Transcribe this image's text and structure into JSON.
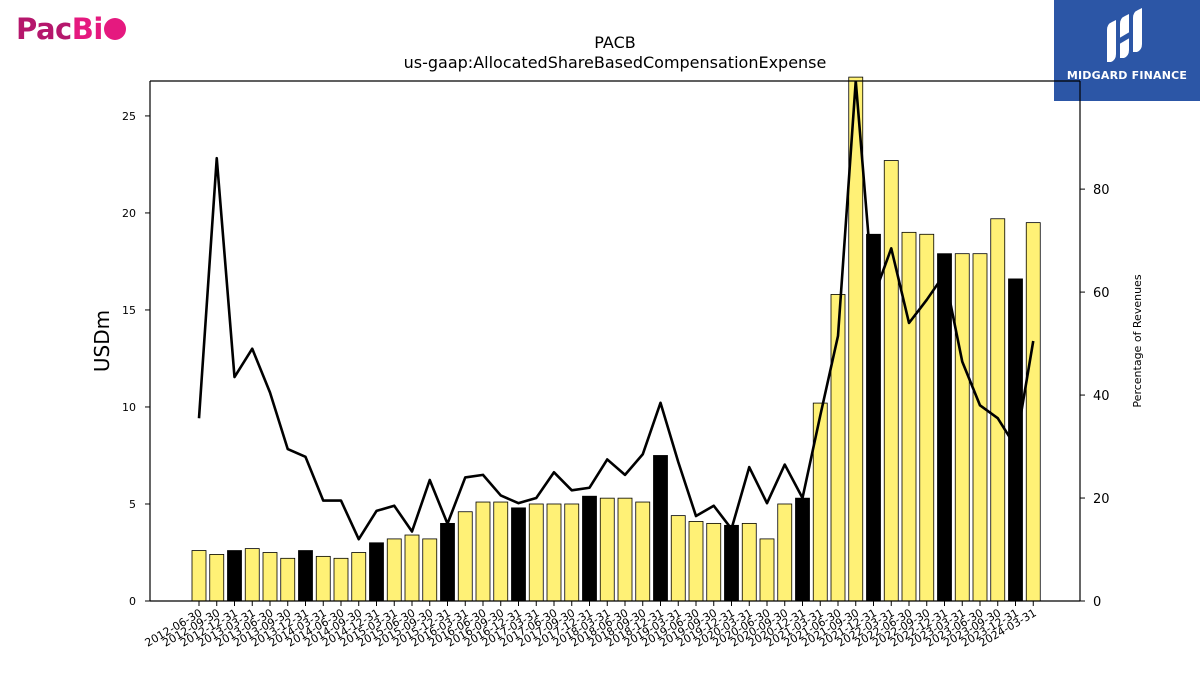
{
  "logos": {
    "left": {
      "text_a": "Pac",
      "text_b": "Bi"
    },
    "right": {
      "brand": "MIDGARD FINANCE"
    }
  },
  "chart_data": {
    "type": "bar",
    "title": "PACB",
    "subtitle": "us-gaap:AllocatedShareBasedCompensationExpense",
    "ylabel": "USDm",
    "y2label": "Percentage of Revenues",
    "ylim": [
      0,
      26.8
    ],
    "y2lim": [
      0,
      101
    ],
    "yticks": [
      0,
      5,
      10,
      15,
      20,
      25
    ],
    "y2ticks": [
      0,
      20,
      40,
      60,
      80
    ],
    "categories": [
      "2012-06-30",
      "2012-09-30",
      "2012-12-31",
      "2013-03-31",
      "2013-06-30",
      "2013-09-30",
      "2013-12-31",
      "2014-03-31",
      "2014-06-30",
      "2014-09-30",
      "2014-12-31",
      "2015-03-31",
      "2015-06-30",
      "2015-09-30",
      "2015-12-31",
      "2016-03-31",
      "2016-06-30",
      "2016-09-30",
      "2016-12-31",
      "2017-03-31",
      "2017-06-30",
      "2017-09-30",
      "2017-12-31",
      "2018-03-31",
      "2018-06-30",
      "2018-09-30",
      "2018-12-31",
      "2019-03-31",
      "2019-06-30",
      "2019-09-30",
      "2019-12-31",
      "2020-03-31",
      "2020-06-30",
      "2020-09-30",
      "2020-12-31",
      "2021-03-31",
      "2021-06-30",
      "2021-09-30",
      "2021-12-31",
      "2022-03-31",
      "2022-06-30",
      "2022-09-30",
      "2022-12-31",
      "2023-03-31",
      "2023-06-30",
      "2023-09-30",
      "2023-12-31",
      "2024-03-31"
    ],
    "series": [
      {
        "type": "bar",
        "values": [
          2.6,
          2.4,
          2.6,
          2.7,
          2.5,
          2.2,
          2.6,
          2.3,
          2.2,
          2.5,
          3.0,
          3.2,
          3.4,
          3.2,
          4.0,
          4.6,
          5.1,
          5.1,
          4.8,
          5.0,
          5.0,
          5.0,
          5.4,
          5.3,
          5.3,
          5.1,
          7.5,
          4.4,
          4.1,
          4.0,
          3.9,
          4.0,
          3.2,
          5.0,
          5.3,
          10.2,
          15.8,
          27.0,
          18.9,
          22.7,
          19.0,
          18.9,
          17.9,
          17.9,
          17.9,
          19.7,
          16.6,
          19.5
        ],
        "highlight": [
          false,
          false,
          true,
          false,
          false,
          false,
          true,
          false,
          false,
          false,
          true,
          false,
          false,
          false,
          true,
          false,
          false,
          false,
          true,
          false,
          false,
          false,
          true,
          false,
          false,
          false,
          true,
          false,
          false,
          false,
          true,
          false,
          false,
          false,
          true,
          false,
          false,
          false,
          true,
          false,
          false,
          false,
          true,
          false,
          false,
          false,
          true,
          false
        ]
      },
      {
        "type": "line",
        "axis": "y2",
        "values": [
          35.5,
          86,
          43.5,
          49,
          40.5,
          29.5,
          28,
          19.5,
          19.5,
          12,
          17.5,
          18.5,
          13.5,
          23.5,
          15,
          24,
          24.5,
          20.5,
          19,
          20,
          25,
          21.5,
          22,
          27.5,
          24.5,
          28.5,
          38.5,
          27,
          16.5,
          18.5,
          14,
          26,
          19,
          26.5,
          20,
          36,
          51.5,
          101,
          59,
          68.5,
          54,
          58.5,
          63.5,
          46.5,
          38,
          35.5,
          30,
          50.5
        ]
      }
    ],
    "colors": {
      "bar": "#fff176",
      "bar_highlight": "#000000",
      "bar_edge": "#000000",
      "line": "#000000"
    },
    "grid": false,
    "legend": "none"
  }
}
